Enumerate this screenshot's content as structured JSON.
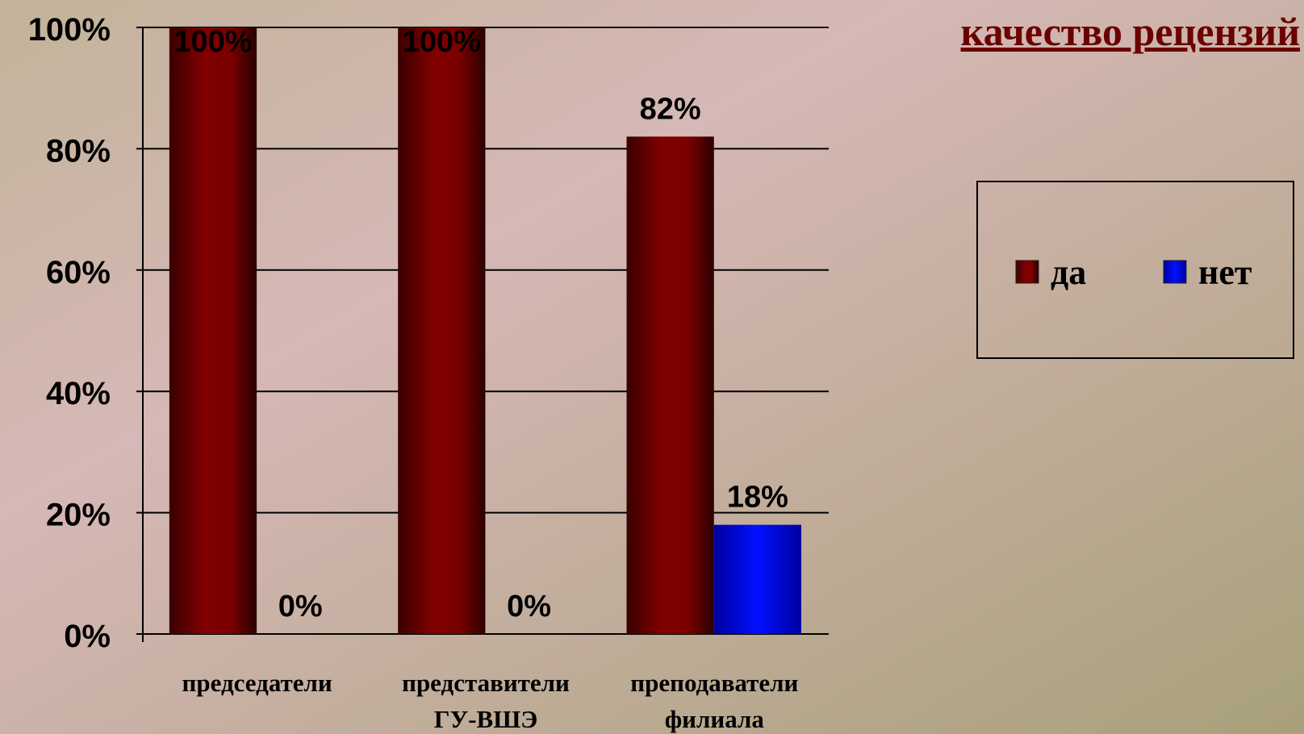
{
  "chart_data": {
    "type": "bar",
    "title": "качество рецензий",
    "categories": [
      "председатели",
      "представители ГУ-ВШЭ",
      "преподаватели филиала"
    ],
    "series": [
      {
        "name": "да",
        "color": "#7a0000",
        "values": [
          100,
          100,
          82
        ],
        "value_labels": [
          "100%",
          "100%",
          "82%"
        ]
      },
      {
        "name": "нет",
        "color": "#0000e0",
        "values": [
          0,
          0,
          18
        ],
        "value_labels": [
          "0%",
          "0%",
          "18%"
        ]
      }
    ],
    "ylim": [
      0,
      100
    ],
    "yticks": [
      {
        "value": 0,
        "label": "0%"
      },
      {
        "value": 20,
        "label": "20%"
      },
      {
        "value": 40,
        "label": "40%"
      },
      {
        "value": 60,
        "label": "60%"
      },
      {
        "value": 80,
        "label": "80%"
      },
      {
        "value": 100,
        "label": "100%"
      }
    ],
    "grid": true,
    "legend": "right"
  }
}
